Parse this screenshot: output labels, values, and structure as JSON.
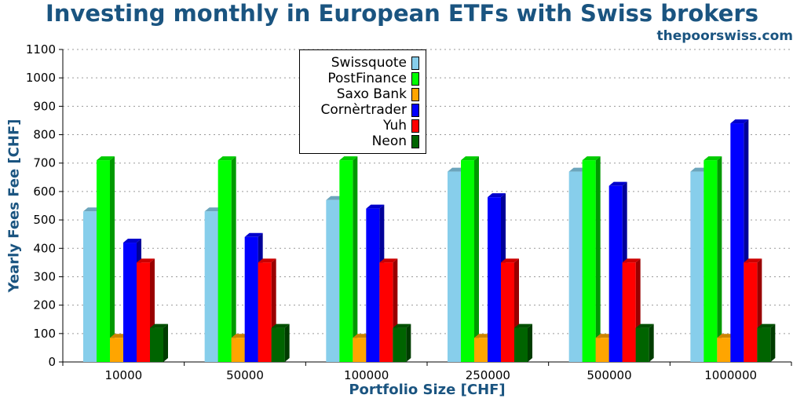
{
  "chart_data": {
    "type": "bar",
    "title": "Investing monthly in European ETFs with Swiss brokers",
    "source": "thepoorswiss.com",
    "xlabel": "Portfolio Size [CHF]",
    "ylabel": "Yearly Fees Fee [CHF]",
    "ylim": [
      0,
      1100
    ],
    "yticks": [
      0,
      100,
      200,
      300,
      400,
      500,
      600,
      700,
      800,
      900,
      1000,
      1100
    ],
    "grid": true,
    "legend_position": "top-center",
    "categories": [
      "10000",
      "50000",
      "100000",
      "250000",
      "500000",
      "1000000"
    ],
    "series": [
      {
        "name": "Swissquote",
        "color": "#87ceeb",
        "values": [
          530,
          530,
          570,
          670,
          670,
          670
        ]
      },
      {
        "name": "PostFinance",
        "color": "#00ff00",
        "values": [
          710,
          710,
          710,
          710,
          710,
          710
        ]
      },
      {
        "name": "Saxo Bank",
        "color": "#ffa500",
        "values": [
          85,
          85,
          85,
          85,
          85,
          85
        ]
      },
      {
        "name": "Cornèrtrader",
        "color": "#0000ff",
        "values": [
          420,
          440,
          540,
          580,
          620,
          840
        ]
      },
      {
        "name": "Yuh",
        "color": "#ff0000",
        "values": [
          350,
          350,
          350,
          350,
          350,
          350
        ]
      },
      {
        "name": "Neon",
        "color": "#006400",
        "values": [
          120,
          120,
          120,
          120,
          120,
          120
        ]
      }
    ]
  }
}
